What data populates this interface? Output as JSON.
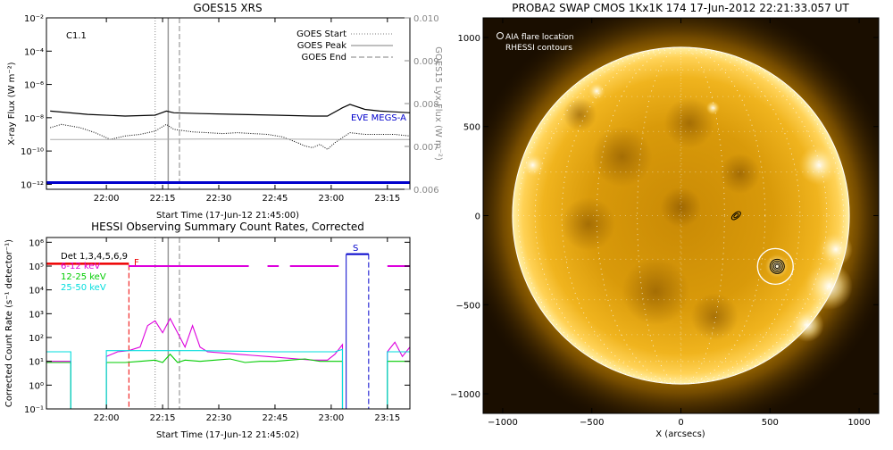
{
  "chart_data": [
    {
      "type": "line",
      "title": "GOES15 XRS",
      "xlabel": "Start Time (17-Jun-12 21:45:00)",
      "ylabel": "X-ray Flux (W m⁻²)",
      "ylabel_right": "GOES15 Lyx Flux (W m⁻²)",
      "flare_class": "C1.1",
      "x_ticks": [
        "22:00",
        "22:15",
        "22:30",
        "22:45",
        "23:00",
        "23:15"
      ],
      "x_tick_minutes": [
        15,
        30,
        45,
        60,
        75,
        90
      ],
      "xlim_minutes": [
        -1,
        96
      ],
      "y_ticks": [
        "10⁻¹²",
        "10⁻¹⁰",
        "10⁻⁸",
        "10⁻⁶",
        "10⁻⁴",
        "10⁻²"
      ],
      "y_tick_exp": [
        -12,
        -10,
        -8,
        -6,
        -4,
        -2
      ],
      "ylim_exp": [
        -12.3,
        -2
      ],
      "y_right_ticks": [
        "0.006",
        "0.007",
        "0.008",
        "0.009",
        "0.010"
      ],
      "y_right_values": [
        0.006,
        0.007,
        0.008,
        0.009,
        0.01
      ],
      "ylim_right": [
        0.006,
        0.01
      ],
      "legend": [
        {
          "label": "GOES Start",
          "style": "dotted"
        },
        {
          "label": "GOES Peak",
          "style": "solid"
        },
        {
          "label": "GOES End",
          "style": "dashed"
        }
      ],
      "events": {
        "start_minute": 28,
        "peak_minute": 31.5,
        "end_minute": 34.5
      },
      "eve_label": "EVE MEGS-A",
      "colors": {
        "long": "#000000",
        "short": "#000000",
        "lya": "#aaaaaa",
        "eve": "#0000cc",
        "markers": "#999999"
      },
      "series": [
        {
          "name": "long",
          "style": "solid",
          "x": [
            0,
            10,
            20,
            28,
            31,
            33,
            40,
            50,
            60,
            70,
            74,
            78,
            80,
            84,
            88,
            92,
            96
          ],
          "y_exp": [
            -7.6,
            -7.8,
            -7.9,
            -7.85,
            -7.6,
            -7.7,
            -7.75,
            -7.8,
            -7.85,
            -7.9,
            -7.9,
            -7.4,
            -7.2,
            -7.5,
            -7.6,
            -7.65,
            -7.7
          ]
        },
        {
          "name": "short",
          "style": "dotted",
          "x": [
            0,
            3,
            8,
            12,
            16,
            20,
            24,
            28,
            31,
            33,
            38,
            42,
            46,
            50,
            54,
            58,
            62,
            66,
            68,
            70,
            72,
            74,
            76,
            78,
            80,
            84,
            88,
            92,
            96
          ],
          "y_exp": [
            -8.6,
            -8.4,
            -8.6,
            -8.9,
            -9.3,
            -9.1,
            -9.0,
            -8.8,
            -8.4,
            -8.7,
            -8.85,
            -8.9,
            -8.95,
            -8.9,
            -8.95,
            -9.0,
            -9.15,
            -9.5,
            -9.7,
            -9.8,
            -9.6,
            -9.9,
            -9.5,
            -9.2,
            -8.9,
            -9.0,
            -9.0,
            -9.0,
            -9.1
          ]
        },
        {
          "name": "lya",
          "style": "solid",
          "x": [
            0,
            20,
            40,
            60,
            80,
            96
          ],
          "y_right": [
            0.00716,
            0.00716,
            0.00717,
            0.00717,
            0.00716,
            0.00716
          ]
        },
        {
          "name": "eve",
          "style": "thick",
          "x": [
            -1,
            96
          ],
          "y_exp": [
            -11.9,
            -11.9
          ]
        }
      ]
    },
    {
      "type": "line",
      "title": "HESSI Observing Summary Count Rates, Corrected",
      "xlabel": "Start Time (17-Jun-12 21:45:02)",
      "ylabel": "Corrected Count Rate (s⁻¹ detector⁻¹)",
      "x_ticks": [
        "22:00",
        "22:15",
        "22:30",
        "22:45",
        "23:00",
        "23:15"
      ],
      "x_tick_minutes": [
        15,
        30,
        45,
        60,
        75,
        90
      ],
      "xlim_minutes": [
        -1,
        96
      ],
      "y_ticks": [
        "10⁻¹",
        "10⁰",
        "10¹",
        "10²",
        "10³",
        "10⁴",
        "10⁵",
        "10⁶"
      ],
      "y_tick_exp": [
        -1,
        0,
        1,
        2,
        3,
        4,
        5,
        6
      ],
      "ylim_exp": [
        -1,
        6.2
      ],
      "flag_labels": {
        "F": "F",
        "S": "S"
      },
      "legend": [
        {
          "label": "Det 1,3,4,5,6,9",
          "color": "#ee0000"
        },
        {
          "label": "6-12 keV",
          "color": "#dd00dd"
        },
        {
          "label": "12-25 keV",
          "color": "#00cc00"
        },
        {
          "label": "25-50 keV",
          "color": "#00dddd"
        }
      ],
      "markers": {
        "goes_start": 28,
        "goes_peak": 31.5,
        "goes_end": 34.5,
        "red_dashed": 21,
        "blue_solid": 79,
        "blue_dashed": 85
      },
      "flag_segments": {
        "magenta": [
          [
            21,
            53
          ],
          [
            58,
            61
          ],
          [
            64,
            77
          ],
          [
            90,
            96
          ]
        ],
        "red": [
          [
            -1,
            21
          ]
        ],
        "blue": [
          [
            79,
            85
          ]
        ]
      },
      "series": [
        {
          "name": "6-12 keV",
          "color": "#dd00dd",
          "x": [
            -1,
            5.5,
            5.5,
            15,
            15,
            18,
            21,
            24,
            26,
            28,
            30,
            32,
            34,
            36,
            38,
            40,
            42,
            46,
            50,
            54,
            58,
            62,
            66,
            70,
            74,
            76,
            78,
            78,
            90,
            90,
            92,
            94,
            96
          ],
          "y_exp": [
            1.0,
            1.0,
            -1,
            -1,
            1.2,
            1.4,
            1.45,
            1.6,
            2.5,
            2.7,
            2.2,
            2.8,
            2.2,
            1.6,
            2.5,
            1.6,
            1.4,
            1.35,
            1.3,
            1.25,
            1.2,
            1.15,
            1.1,
            1.05,
            1.05,
            1.3,
            1.7,
            -1,
            -1,
            1.4,
            1.8,
            1.2,
            1.6
          ]
        },
        {
          "name": "12-25 keV",
          "color": "#00cc00",
          "x": [
            -1,
            5.5,
            5.5,
            15,
            15,
            20,
            24,
            28,
            30,
            32,
            34,
            36,
            40,
            44,
            48,
            52,
            56,
            60,
            64,
            68,
            72,
            76,
            78,
            78,
            90,
            90,
            92,
            96
          ],
          "y_exp": [
            0.95,
            0.95,
            -1,
            -1,
            0.95,
            0.95,
            1.0,
            1.05,
            0.95,
            1.3,
            0.95,
            1.05,
            1.0,
            1.05,
            1.1,
            0.95,
            1.0,
            1.0,
            1.05,
            1.1,
            1.0,
            1.0,
            1.0,
            -1,
            -1,
            1.0,
            1.0,
            1.0
          ]
        },
        {
          "name": "25-50 keV",
          "color": "#00dddd",
          "x": [
            -1,
            5.5,
            5.5,
            15,
            15,
            40,
            60,
            76,
            78,
            78,
            90,
            90,
            96
          ],
          "y_exp": [
            1.4,
            1.4,
            -1,
            -1,
            1.45,
            1.45,
            1.4,
            1.4,
            1.5,
            -1,
            -1,
            1.4,
            1.4
          ]
        }
      ]
    },
    {
      "type": "heatmap",
      "title": "PROBA2 SWAP CMOS 1Kx1K 174 17-Jun-2012 22:21:33.057 UT",
      "xlabel": "X (arcsecs)",
      "x_ticks": [
        "−1000",
        "−500",
        "0",
        "500",
        "1000"
      ],
      "x_tick_values": [
        -1000,
        -500,
        0,
        500,
        1000
      ],
      "y_ticks": [
        "−1000",
        "−500",
        "0",
        "500",
        "1000"
      ],
      "y_tick_values": [
        -1000,
        -500,
        0,
        500,
        1000
      ],
      "xlim": [
        -1110,
        1110
      ],
      "ylim": [
        -1110,
        1110
      ],
      "legend": [
        "AIA flare location",
        "RHESSI contours"
      ],
      "solar_radius": 945,
      "flare_location": {
        "x": 530,
        "y": -285
      },
      "rhessi_contours": {
        "x": 540,
        "y": -285
      },
      "secondary_source": {
        "x": 310,
        "y": 0
      },
      "colors": {
        "disk": "#f4b000",
        "background": "#1a0e00",
        "limb": "#ffffff"
      }
    }
  ]
}
